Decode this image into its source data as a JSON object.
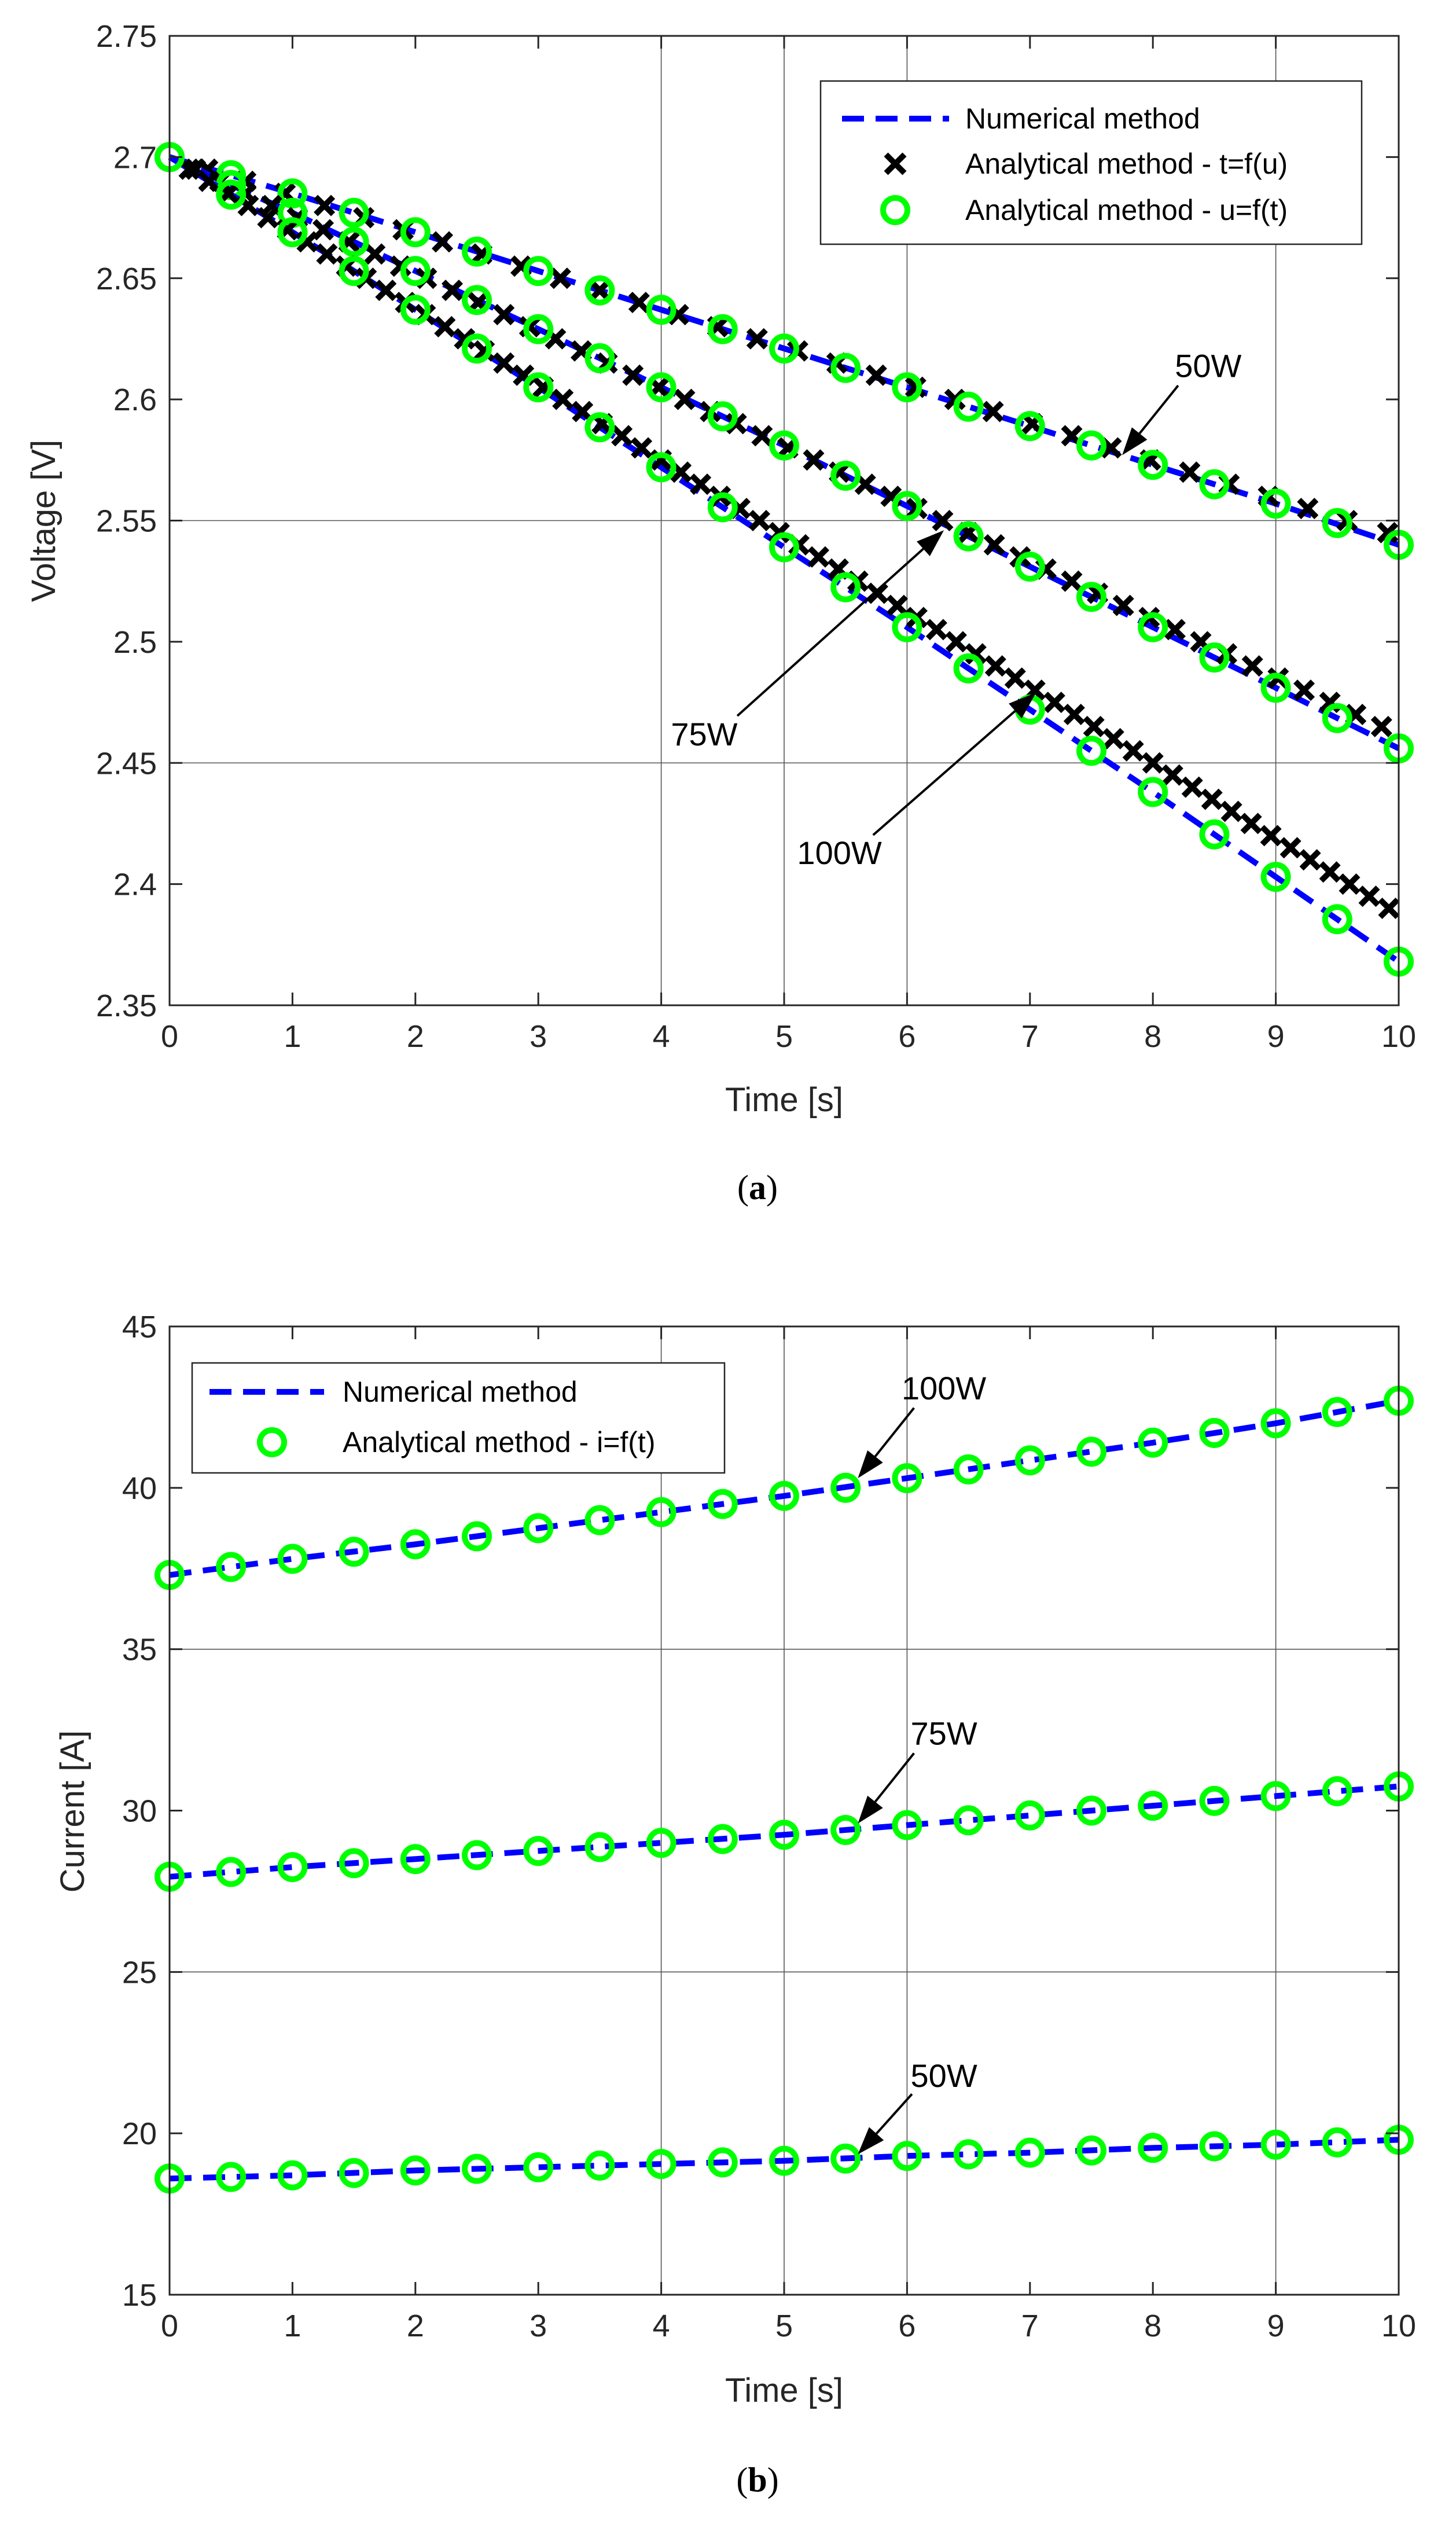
{
  "chart_data": [
    {
      "type": "line",
      "panel_label": "a",
      "title": "",
      "xlabel": "Time [s]",
      "ylabel": "Voltage [V]",
      "xlim": [
        0,
        10
      ],
      "ylim": [
        2.35,
        2.75
      ],
      "xticks": [
        0,
        1,
        2,
        3,
        4,
        5,
        6,
        7,
        8,
        9,
        10
      ],
      "yticks": [
        2.35,
        2.4,
        2.45,
        2.5,
        2.55,
        2.6,
        2.65,
        2.7,
        2.75
      ],
      "ytick_labels": [
        "2.35",
        "2.4",
        "2.45",
        "2.5",
        "2.55",
        "2.6",
        "2.65",
        "2.7",
        "2.75"
      ],
      "legend": {
        "position": "top-right",
        "entries": [
          {
            "label": "Numerical method",
            "style": "dashed-line",
            "color": "#0000ff"
          },
          {
            "label": "Analytical method - t=f(u)",
            "style": "x-marker",
            "color": "#000000"
          },
          {
            "label": "Analytical method - u=f(t)",
            "style": "circle-marker",
            "color": "#00ff00"
          }
        ]
      },
      "series": [
        {
          "name": "50W",
          "numerical": {
            "x": [
              0,
              1,
              2,
              3,
              4,
              5,
              6,
              7,
              8,
              9,
              10
            ],
            "y": [
              2.7,
              2.685,
              2.669,
              2.653,
              2.637,
              2.621,
              2.605,
              2.589,
              2.573,
              2.557,
              2.54
            ]
          },
          "t_f_u": {
            "x": [
              0.31,
              0.62,
              0.94,
              1.26,
              1.58,
              1.9,
              2.22,
              2.54,
              2.86,
              3.18,
              3.5,
              3.82,
              4.14,
              4.46,
              4.78,
              5.11,
              5.43,
              5.75,
              6.07,
              6.39,
              6.7,
              7.02,
              7.34,
              7.66,
              7.98,
              8.3,
              8.62,
              8.94,
              9.26,
              9.58,
              9.91
            ],
            "y": [
              2.695,
              2.69,
              2.685,
              2.68,
              2.675,
              2.67,
              2.665,
              2.66,
              2.655,
              2.65,
              2.645,
              2.64,
              2.635,
              2.63,
              2.625,
              2.62,
              2.615,
              2.61,
              2.605,
              2.6,
              2.595,
              2.59,
              2.585,
              2.58,
              2.575,
              2.57,
              2.565,
              2.56,
              2.555,
              2.55,
              2.545
            ]
          },
          "u_f_t": {
            "x": [
              0,
              0.5,
              1,
              1.5,
              2,
              2.5,
              3,
              3.5,
              4,
              4.5,
              5,
              5.5,
              6,
              6.5,
              7,
              7.5,
              8,
              8.5,
              9,
              9.5,
              10
            ],
            "y": [
              2.7,
              2.6925,
              2.685,
              2.677,
              2.669,
              2.661,
              2.653,
              2.645,
              2.637,
              2.629,
              2.621,
              2.613,
              2.605,
              2.597,
              2.589,
              2.581,
              2.573,
              2.565,
              2.557,
              2.549,
              2.54
            ]
          }
        },
        {
          "name": "75W",
          "numerical": {
            "x": [
              0,
              1,
              2,
              3,
              4,
              5,
              6,
              7,
              8,
              9,
              10
            ],
            "y": [
              2.7,
              2.677,
              2.653,
              2.629,
              2.605,
              2.581,
              2.556,
              2.531,
              2.506,
              2.481,
              2.456
            ]
          },
          "t_f_u": {
            "x": [
              0.21,
              0.41,
              0.62,
              0.83,
              1.04,
              1.25,
              1.46,
              1.67,
              1.88,
              2.09,
              2.3,
              2.51,
              2.72,
              2.93,
              3.14,
              3.35,
              3.56,
              3.77,
              3.98,
              4.19,
              4.4,
              4.61,
              4.82,
              5.03,
              5.24,
              5.45,
              5.66,
              5.87,
              6.08,
              6.29,
              6.5,
              6.71,
              6.92,
              7.13,
              7.34,
              7.55,
              7.76,
              7.97,
              8.18,
              8.39,
              8.6,
              8.81,
              9.02,
              9.23,
              9.44,
              9.65,
              9.86
            ],
            "y": [
              2.695,
              2.69,
              2.685,
              2.68,
              2.675,
              2.67,
              2.665,
              2.66,
              2.655,
              2.65,
              2.645,
              2.64,
              2.635,
              2.63,
              2.625,
              2.62,
              2.615,
              2.61,
              2.605,
              2.6,
              2.595,
              2.59,
              2.585,
              2.58,
              2.575,
              2.57,
              2.565,
              2.56,
              2.555,
              2.55,
              2.545,
              2.54,
              2.535,
              2.53,
              2.525,
              2.52,
              2.515,
              2.51,
              2.505,
              2.5,
              2.495,
              2.49,
              2.485,
              2.48,
              2.475,
              2.47,
              2.465
            ]
          },
          "u_f_t": {
            "x": [
              0,
              0.5,
              1,
              1.5,
              2,
              2.5,
              3,
              3.5,
              4,
              4.5,
              5,
              5.5,
              6,
              6.5,
              7,
              7.5,
              8,
              8.5,
              9,
              9.5,
              10
            ],
            "y": [
              2.7,
              2.6885,
              2.677,
              2.665,
              2.653,
              2.641,
              2.629,
              2.617,
              2.605,
              2.593,
              2.581,
              2.5685,
              2.556,
              2.5435,
              2.531,
              2.5185,
              2.506,
              2.4935,
              2.481,
              2.4685,
              2.456
            ]
          }
        },
        {
          "name": "100W",
          "numerical": {
            "x": [
              0,
              1,
              2,
              3,
              4,
              5,
              6,
              7,
              8,
              9,
              10
            ],
            "y": [
              2.7,
              2.669,
              2.637,
              2.605,
              2.572,
              2.539,
              2.506,
              2.472,
              2.438,
              2.403,
              2.368
            ]
          },
          "t_f_u": {
            "x": [
              0.16,
              0.32,
              0.48,
              0.64,
              0.8,
              0.96,
              1.12,
              1.28,
              1.44,
              1.6,
              1.76,
              1.92,
              2.08,
              2.24,
              2.4,
              2.56,
              2.72,
              2.88,
              3.04,
              3.2,
              3.36,
              3.52,
              3.68,
              3.84,
              4.0,
              4.16,
              4.32,
              4.48,
              4.64,
              4.8,
              4.96,
              5.12,
              5.28,
              5.44,
              5.6,
              5.76,
              5.92,
              6.08,
              6.24,
              6.4,
              6.56,
              6.72,
              6.88,
              7.04,
              7.2,
              7.36,
              7.52,
              7.68,
              7.84,
              8.0,
              8.16,
              8.32,
              8.48,
              8.64,
              8.8,
              8.96,
              9.12,
              9.28,
              9.44,
              9.6,
              9.76,
              9.92
            ],
            "y": [
              2.695,
              2.69,
              2.685,
              2.68,
              2.675,
              2.67,
              2.665,
              2.66,
              2.655,
              2.65,
              2.645,
              2.64,
              2.635,
              2.63,
              2.625,
              2.62,
              2.615,
              2.61,
              2.605,
              2.6,
              2.595,
              2.59,
              2.585,
              2.58,
              2.575,
              2.57,
              2.565,
              2.56,
              2.555,
              2.55,
              2.545,
              2.54,
              2.535,
              2.53,
              2.525,
              2.52,
              2.515,
              2.51,
              2.505,
              2.5,
              2.495,
              2.49,
              2.485,
              2.48,
              2.475,
              2.47,
              2.465,
              2.46,
              2.455,
              2.45,
              2.445,
              2.44,
              2.435,
              2.43,
              2.425,
              2.42,
              2.415,
              2.41,
              2.405,
              2.4,
              2.395,
              2.39
            ]
          },
          "u_f_t": {
            "x": [
              0,
              0.5,
              1,
              1.5,
              2,
              2.5,
              3,
              3.5,
              4,
              4.5,
              5,
              5.5,
              6,
              6.5,
              7,
              7.5,
              8,
              8.5,
              9,
              9.5,
              10
            ],
            "y": [
              2.7,
              2.6845,
              2.669,
              2.653,
              2.637,
              2.621,
              2.605,
              2.5885,
              2.572,
              2.5555,
              2.539,
              2.5225,
              2.506,
              2.489,
              2.472,
              2.455,
              2.438,
              2.4205,
              2.403,
              2.3855,
              2.368
            ]
          }
        }
      ],
      "reference_lines": {
        "vertical_x": [
          4,
          5,
          6,
          9
        ],
        "horizontal_y": [
          2.45,
          2.55
        ]
      },
      "annotations": [
        {
          "text": "50W",
          "text_at": [
            8.45,
            2.614
          ],
          "arrow_to": [
            7.75,
            2.577
          ]
        },
        {
          "text": "75W",
          "text_at": [
            4.35,
            2.462
          ],
          "arrow_to": [
            6.3,
            2.546
          ]
        },
        {
          "text": "100W",
          "text_at": [
            5.45,
            2.413
          ],
          "arrow_to": [
            7.05,
            2.479
          ]
        }
      ]
    },
    {
      "type": "line",
      "panel_label": "b",
      "title": "",
      "xlabel": "Time [s]",
      "ylabel": "Current [A]",
      "xlim": [
        0,
        10
      ],
      "ylim": [
        15,
        45
      ],
      "xticks": [
        0,
        1,
        2,
        3,
        4,
        5,
        6,
        7,
        8,
        9,
        10
      ],
      "yticks": [
        15,
        20,
        25,
        30,
        35,
        40,
        45
      ],
      "ytick_labels": [
        "15",
        "20",
        "25",
        "30",
        "35",
        "40",
        "45"
      ],
      "legend": {
        "position": "top-left",
        "entries": [
          {
            "label": "Numerical method",
            "style": "dashed-line",
            "color": "#0000ff"
          },
          {
            "label": "Analytical method - i=f(t)",
            "style": "circle-marker",
            "color": "#00ff00"
          }
        ]
      },
      "series": [
        {
          "name": "100W",
          "numerical": {
            "x": [
              0,
              1,
              2,
              3,
              4,
              5,
              6,
              7,
              8,
              9,
              10
            ],
            "y": [
              37.3,
              37.8,
              38.25,
              38.75,
              39.25,
              39.75,
              40.3,
              40.85,
              41.4,
              42.0,
              42.7
            ]
          },
          "u_f_t": {
            "x": [
              0,
              0.5,
              1,
              1.5,
              2,
              2.5,
              3,
              3.5,
              4,
              4.5,
              5,
              5.5,
              6,
              6.5,
              7,
              7.5,
              8,
              8.5,
              9,
              9.5,
              10
            ],
            "y": [
              37.3,
              37.55,
              37.8,
              38.02,
              38.25,
              38.5,
              38.75,
              39.0,
              39.25,
              39.5,
              39.75,
              40.0,
              40.3,
              40.57,
              40.85,
              41.12,
              41.4,
              41.7,
              42.0,
              42.35,
              42.7
            ]
          }
        },
        {
          "name": "75W",
          "numerical": {
            "x": [
              0,
              1,
              2,
              3,
              4,
              5,
              6,
              7,
              8,
              9,
              10
            ],
            "y": [
              27.95,
              28.25,
              28.5,
              28.75,
              29.0,
              29.25,
              29.55,
              29.85,
              30.15,
              30.45,
              30.75
            ]
          },
          "u_f_t": {
            "x": [
              0,
              0.5,
              1,
              1.5,
              2,
              2.5,
              3,
              3.5,
              4,
              4.5,
              5,
              5.5,
              6,
              6.5,
              7,
              7.5,
              8,
              8.5,
              9,
              9.5,
              10
            ],
            "y": [
              27.95,
              28.1,
              28.25,
              28.37,
              28.5,
              28.62,
              28.75,
              28.87,
              29.0,
              29.12,
              29.25,
              29.4,
              29.55,
              29.7,
              29.85,
              30.0,
              30.15,
              30.3,
              30.45,
              30.6,
              30.75
            ]
          }
        },
        {
          "name": "50W",
          "numerical": {
            "x": [
              0,
              1,
              2,
              3,
              4,
              5,
              6,
              7,
              8,
              9,
              10
            ],
            "y": [
              18.6,
              18.7,
              18.85,
              18.95,
              19.05,
              19.15,
              19.3,
              19.4,
              19.55,
              19.65,
              19.8
            ]
          },
          "u_f_t": {
            "x": [
              0,
              0.5,
              1,
              1.5,
              2,
              2.5,
              3,
              3.5,
              4,
              4.5,
              5,
              5.5,
              6,
              6.5,
              7,
              7.5,
              8,
              8.5,
              9,
              9.5,
              10
            ],
            "y": [
              18.6,
              18.65,
              18.7,
              18.77,
              18.85,
              18.9,
              18.95,
              19.0,
              19.05,
              19.1,
              19.15,
              19.22,
              19.3,
              19.35,
              19.4,
              19.47,
              19.55,
              19.6,
              19.65,
              19.72,
              19.8
            ]
          }
        }
      ],
      "reference_lines": {
        "vertical_x": [
          4,
          5,
          6,
          9
        ],
        "horizontal_y": [
          25,
          35
        ]
      },
      "annotations": [
        {
          "text": "100W",
          "text_at": [
            6.3,
            43.1
          ],
          "arrow_to": [
            5.6,
            40.3
          ]
        },
        {
          "text": "75W",
          "text_at": [
            6.3,
            32.4
          ],
          "arrow_to": [
            5.6,
            29.6
          ]
        },
        {
          "text": "50W",
          "text_at": [
            6.3,
            21.8
          ],
          "arrow_to": [
            5.6,
            19.35
          ]
        }
      ]
    }
  ],
  "colors": {
    "numerical": "#0000ff",
    "t_f_u": "#000000",
    "u_f_t": "#00ff00",
    "axis": "#262626",
    "refline": "#555555"
  }
}
